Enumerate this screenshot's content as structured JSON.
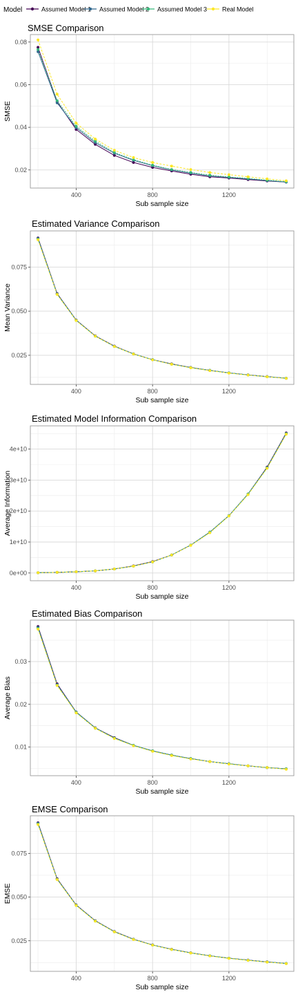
{
  "legend": {
    "title": "Model",
    "items": [
      {
        "label": "Assumed Model 1",
        "color": "#440154"
      },
      {
        "label": "Assumed Model 2",
        "color": "#31688E"
      },
      {
        "label": "Assumed Model 3",
        "color": "#35B779"
      },
      {
        "label": "Real Model",
        "color": "#FDE725"
      }
    ]
  },
  "chart_data": [
    {
      "type": "line",
      "title": "SMSE Comparison",
      "xlabel": "Sub sample size",
      "ylabel": "SMSE",
      "xlim": [
        160,
        1540
      ],
      "ylim": [
        0.0115,
        0.0835
      ],
      "xticks": [
        400,
        800,
        1200
      ],
      "yticks": [
        0.02,
        0.04,
        0.06,
        0.08
      ],
      "ytick_labels": [
        "0.02",
        "0.04",
        "0.06",
        "0.08"
      ],
      "x": [
        200,
        300,
        400,
        500,
        600,
        700,
        800,
        900,
        1000,
        1100,
        1200,
        1300,
        1400,
        1500
      ],
      "series": [
        {
          "name": "Assumed Model 1",
          "values": [
            0.0775,
            0.052,
            0.039,
            0.032,
            0.0268,
            0.0235,
            0.0212,
            0.0195,
            0.018,
            0.0168,
            0.0162,
            0.0155,
            0.0148,
            0.0143
          ]
        },
        {
          "name": "Assumed Model 2",
          "values": [
            0.0755,
            0.0515,
            0.0398,
            0.0328,
            0.0278,
            0.0245,
            0.022,
            0.02,
            0.0185,
            0.0172,
            0.0165,
            0.0158,
            0.015,
            0.0143
          ]
        },
        {
          "name": "Assumed Model 3",
          "values": [
            0.0765,
            0.0525,
            0.0405,
            0.0335,
            0.0282,
            0.0248,
            0.0222,
            0.0202,
            0.0188,
            0.0175,
            0.0167,
            0.016,
            0.0152,
            0.0145
          ]
        },
        {
          "name": "Real Model",
          "values": [
            0.081,
            0.0555,
            0.042,
            0.0345,
            0.0292,
            0.0258,
            0.0235,
            0.0218,
            0.0202,
            0.0188,
            0.0178,
            0.0168,
            0.0158,
            0.0149
          ]
        }
      ]
    },
    {
      "type": "line",
      "title": "Estimated Variance Comparison",
      "xlabel": "Sub sample size",
      "ylabel": "Mean Variance",
      "xlim": [
        160,
        1540
      ],
      "ylim": [
        0.0085,
        0.0955
      ],
      "xticks": [
        400,
        800,
        1200
      ],
      "yticks": [
        0.025,
        0.05,
        0.075
      ],
      "ytick_labels": [
        "0.025",
        "0.050",
        "0.075"
      ],
      "x": [
        200,
        300,
        400,
        500,
        600,
        700,
        800,
        900,
        1000,
        1100,
        1200,
        1300,
        1400,
        1500
      ],
      "series": [
        {
          "name": "Assumed Model 1",
          "values": [
            0.0915,
            0.06,
            0.045,
            0.036,
            0.0302,
            0.0258,
            0.0225,
            0.0201,
            0.0181,
            0.0164,
            0.015,
            0.0139,
            0.0129,
            0.012
          ]
        },
        {
          "name": "Assumed Model 2",
          "values": [
            0.0912,
            0.0598,
            0.0449,
            0.0359,
            0.0301,
            0.0258,
            0.0225,
            0.02,
            0.018,
            0.0164,
            0.015,
            0.0139,
            0.0129,
            0.012
          ]
        },
        {
          "name": "Assumed Model 3",
          "values": [
            0.0908,
            0.0596,
            0.0448,
            0.0359,
            0.03,
            0.0257,
            0.0225,
            0.02,
            0.018,
            0.0164,
            0.015,
            0.0138,
            0.0128,
            0.012
          ]
        },
        {
          "name": "Real Model",
          "values": [
            0.0905,
            0.0595,
            0.0447,
            0.0358,
            0.03,
            0.0257,
            0.0224,
            0.0199,
            0.0179,
            0.0163,
            0.0149,
            0.0138,
            0.0128,
            0.0119
          ]
        }
      ]
    },
    {
      "type": "line",
      "title": "Estimated Model Information Comparison",
      "xlabel": "Sub sample size",
      "ylabel": "Average Information",
      "xlim": [
        160,
        1540
      ],
      "ylim": [
        -2500000000.0,
        47500000000.0
      ],
      "xticks": [
        400,
        800,
        1200
      ],
      "yticks": [
        0,
        10000000000.0,
        20000000000.0,
        30000000000.0,
        40000000000.0
      ],
      "ytick_labels": [
        "0e+00",
        "1e+10",
        "2e+10",
        "3e+10",
        "4e+10"
      ],
      "x": [
        200,
        300,
        400,
        500,
        600,
        700,
        800,
        900,
        1000,
        1100,
        1200,
        1300,
        1400,
        1500
      ],
      "series": [
        {
          "name": "Assumed Model 1",
          "values": [
            100000000.0,
            200000000.0,
            400000000.0,
            700000000.0,
            1300000000.0,
            2300000000.0,
            3700000000.0,
            5800000000.0,
            9000000000.0,
            13200000000.0,
            18500000000.0,
            25500000000.0,
            34200000000.0,
            45200000000.0
          ]
        },
        {
          "name": "Assumed Model 2",
          "values": [
            100000000.0,
            200000000.0,
            400000000.0,
            700000000.0,
            1300000000.0,
            2200000000.0,
            3600000000.0,
            5800000000.0,
            9000000000.0,
            13200000000.0,
            18500000000.0,
            25500000000.0,
            34000000000.0,
            45000000000.0
          ]
        },
        {
          "name": "Assumed Model 3",
          "values": [
            100000000.0,
            200000000.0,
            400000000.0,
            700000000.0,
            1300000000.0,
            2200000000.0,
            3600000000.0,
            5800000000.0,
            9000000000.0,
            13200000000.0,
            18500000000.0,
            25500000000.0,
            34000000000.0,
            45000000000.0
          ]
        },
        {
          "name": "Real Model",
          "values": [
            100000000.0,
            200000000.0,
            400000000.0,
            700000000.0,
            1300000000.0,
            2200000000.0,
            3600000000.0,
            5800000000.0,
            8900000000.0,
            13000000000.0,
            18400000000.0,
            25300000000.0,
            33800000000.0,
            44800000000.0
          ]
        }
      ]
    },
    {
      "type": "line",
      "title": "Estimated Bias Comparison",
      "xlabel": "Sub sample size",
      "ylabel": "Average Bias",
      "xlim": [
        160,
        1540
      ],
      "ylim": [
        0.0033,
        0.0397
      ],
      "xticks": [
        400,
        800,
        1200
      ],
      "yticks": [
        0.01,
        0.02,
        0.03
      ],
      "ytick_labels": [
        "0.01",
        "0.02",
        "0.03"
      ],
      "x": [
        200,
        300,
        400,
        500,
        600,
        700,
        800,
        900,
        1000,
        1100,
        1200,
        1300,
        1400,
        1500
      ],
      "series": [
        {
          "name": "Assumed Model 1",
          "values": [
            0.0382,
            0.0248,
            0.0182,
            0.0145,
            0.0122,
            0.0104,
            0.0091,
            0.0081,
            0.0073,
            0.0066,
            0.0061,
            0.0056,
            0.0052,
            0.0049
          ]
        },
        {
          "name": "Assumed Model 2",
          "values": [
            0.038,
            0.0246,
            0.0182,
            0.0145,
            0.0121,
            0.0104,
            0.0091,
            0.0081,
            0.0073,
            0.0066,
            0.0061,
            0.0056,
            0.0052,
            0.0049
          ]
        },
        {
          "name": "Assumed Model 3",
          "values": [
            0.0378,
            0.0245,
            0.0181,
            0.0144,
            0.0121,
            0.0104,
            0.0091,
            0.0081,
            0.0073,
            0.0066,
            0.0061,
            0.0056,
            0.0052,
            0.0049
          ]
        },
        {
          "name": "Real Model",
          "values": [
            0.0376,
            0.0244,
            0.018,
            0.0144,
            0.012,
            0.0103,
            0.009,
            0.008,
            0.0072,
            0.0066,
            0.006,
            0.0056,
            0.0052,
            0.0048
          ]
        }
      ]
    },
    {
      "type": "line",
      "title": "EMSE Comparison",
      "xlabel": "Sub sample size",
      "ylabel": "EMSE",
      "xlim": [
        160,
        1540
      ],
      "ylim": [
        0.0075,
        0.0965
      ],
      "xticks": [
        400,
        800,
        1200
      ],
      "yticks": [
        0.025,
        0.05,
        0.075
      ],
      "ytick_labels": [
        "0.025",
        "0.050",
        "0.075"
      ],
      "x": [
        200,
        300,
        400,
        500,
        600,
        700,
        800,
        900,
        1000,
        1100,
        1200,
        1300,
        1400,
        1500
      ],
      "series": [
        {
          "name": "Assumed Model 1",
          "values": [
            0.0925,
            0.0605,
            0.0455,
            0.0365,
            0.0303,
            0.0259,
            0.0226,
            0.0201,
            0.0181,
            0.0164,
            0.015,
            0.0139,
            0.0129,
            0.012
          ]
        },
        {
          "name": "Assumed Model 2",
          "values": [
            0.0922,
            0.0603,
            0.0454,
            0.0364,
            0.0302,
            0.0258,
            0.0226,
            0.0201,
            0.0181,
            0.0164,
            0.015,
            0.0139,
            0.0129,
            0.012
          ]
        },
        {
          "name": "Assumed Model 3",
          "values": [
            0.0918,
            0.0601,
            0.0453,
            0.0363,
            0.0301,
            0.0258,
            0.0225,
            0.02,
            0.018,
            0.0164,
            0.015,
            0.0138,
            0.0128,
            0.012
          ]
        },
        {
          "name": "Real Model",
          "values": [
            0.0915,
            0.06,
            0.0452,
            0.0362,
            0.0301,
            0.0257,
            0.0225,
            0.02,
            0.018,
            0.0163,
            0.0149,
            0.0138,
            0.0128,
            0.0119
          ]
        }
      ]
    }
  ]
}
